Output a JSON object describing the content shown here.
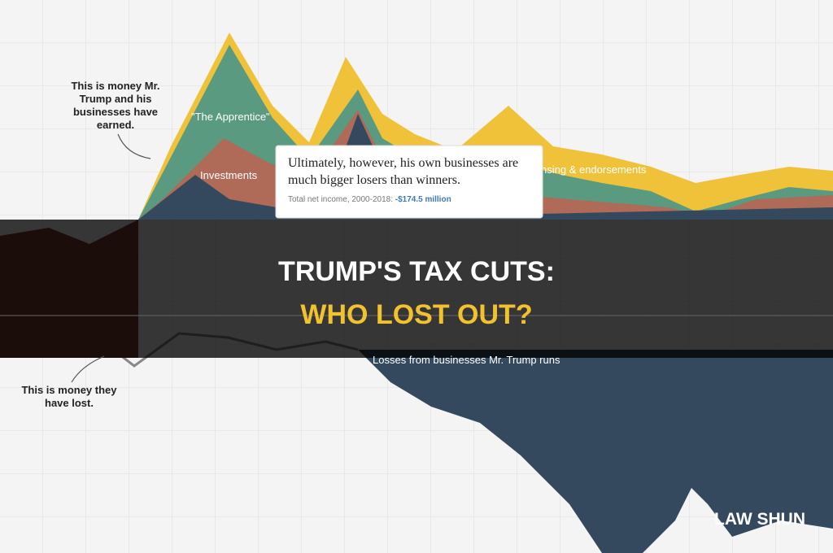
{
  "annotations": {
    "earned": "This is money Mr. Trump and his businesses have earned.",
    "lost": "This is money they have lost."
  },
  "labels": {
    "apprentice": "\"The Apprentice\"",
    "investments": "Investments",
    "licensing": "nsing & endorsements",
    "losses": "Losses from businesses Mr. Trump runs"
  },
  "callout": {
    "text": "Ultimately, however, his own businesses are much bigger losers than winners.",
    "caption": "Total net income, 2000-2018:",
    "amount": "-$174.5 million"
  },
  "header": {
    "title_line1": "TRUMP'S TAX CUTS:",
    "title_line2": "WHO LOST OUT?"
  },
  "watermark": "LAW SHUN"
}
